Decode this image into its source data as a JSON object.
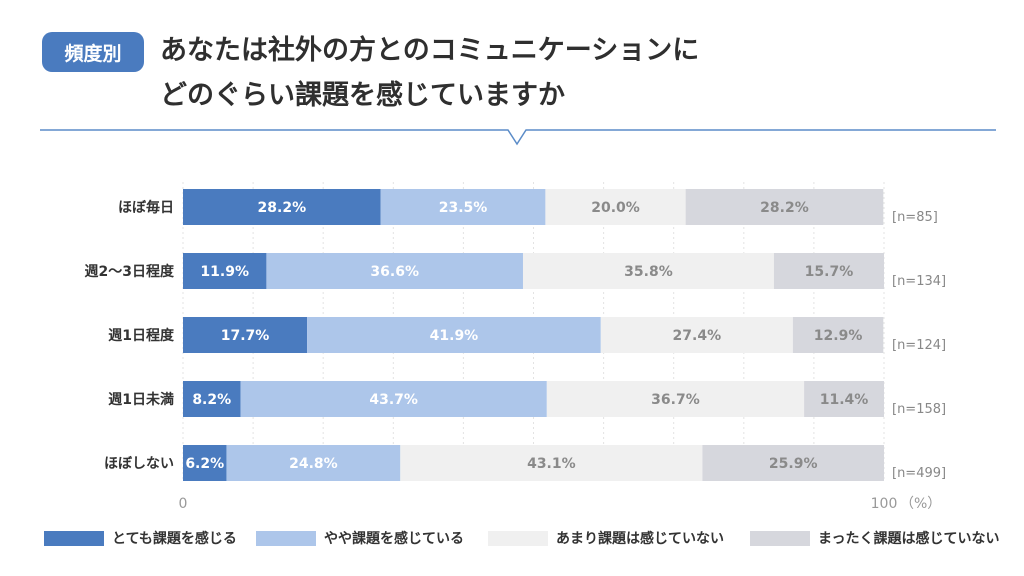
{
  "header": {
    "badge": "頻度別",
    "title_line1": "あなたは社外の方とのコミュニケーションに",
    "title_line2": "どのぐらい課題を感じていますか"
  },
  "colors": {
    "series": [
      "#4a7bbf",
      "#adc6ea",
      "#f0f0f0",
      "#d6d7dd"
    ],
    "divider": "#5b8cc8",
    "grid": "#e3e3e3"
  },
  "chart_data": {
    "type": "bar",
    "orientation": "horizontal",
    "stacked": true,
    "categories": [
      "ほぼ毎日",
      "週2〜3日程度",
      "週1日程度",
      "週1日未満",
      "ほぼしない"
    ],
    "sample_sizes": [
      "[n=85]",
      "[n=134]",
      "[n=124]",
      "[n=158]",
      "[n=499]"
    ],
    "series": [
      {
        "name": "とても課題を感じる",
        "values": [
          28.2,
          11.9,
          17.7,
          8.2,
          6.2
        ]
      },
      {
        "name": "やや課題を感じている",
        "values": [
          23.5,
          36.6,
          41.9,
          43.7,
          24.8
        ]
      },
      {
        "name": "あまり課題は感じていない",
        "values": [
          20.0,
          35.8,
          27.4,
          36.7,
          43.1
        ]
      },
      {
        "name": "まったく課題は感じていない",
        "values": [
          28.2,
          15.7,
          12.9,
          11.4,
          25.9
        ]
      }
    ],
    "xlim": [
      0,
      100
    ],
    "x_tick_labels": [
      "0",
      "100"
    ],
    "x_unit": "（%）",
    "grid": true,
    "legend_position": "bottom"
  }
}
